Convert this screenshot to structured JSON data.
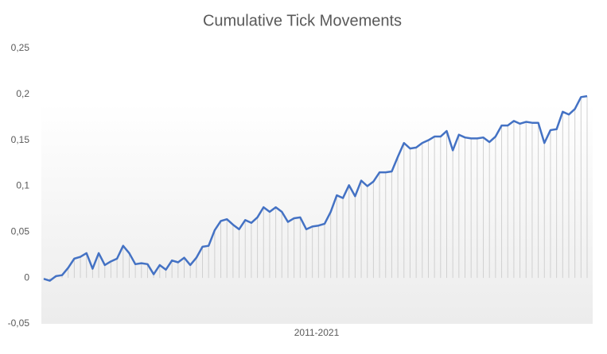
{
  "chart_data": {
    "type": "line",
    "title": "Cumulative Tick Movements",
    "x_label": "2011-2021",
    "color": "#4472c4",
    "drop_lines": true,
    "ylim": [
      -0.05,
      0.25
    ],
    "yticks": [
      {
        "value": -0.05,
        "label": "-0,05"
      },
      0,
      {
        "value": 0.05,
        "label": "0,05"
      },
      {
        "value": 0.1,
        "label": "0,1"
      },
      {
        "value": 0.15,
        "label": "0,15"
      },
      {
        "value": 0.2,
        "label": "0,2"
      },
      {
        "value": 0.25,
        "label": "0,25"
      }
    ],
    "values": [
      -0.001,
      -0.003,
      0.002,
      0.003,
      0.011,
      0.021,
      0.023,
      0.027,
      0.01,
      0.027,
      0.014,
      0.018,
      0.021,
      0.035,
      0.027,
      0.015,
      0.016,
      0.015,
      0.004,
      0.014,
      0.009,
      0.019,
      0.017,
      0.022,
      0.014,
      0.022,
      0.034,
      0.035,
      0.052,
      0.062,
      0.064,
      0.058,
      0.053,
      0.063,
      0.06,
      0.066,
      0.077,
      0.072,
      0.077,
      0.072,
      0.061,
      0.065,
      0.066,
      0.053,
      0.056,
      0.057,
      0.059,
      0.072,
      0.09,
      0.087,
      0.101,
      0.089,
      0.106,
      0.1,
      0.105,
      0.115,
      0.115,
      0.116,
      0.132,
      0.147,
      0.141,
      0.142,
      0.147,
      0.15,
      0.154,
      0.154,
      0.16,
      0.139,
      0.156,
      0.153,
      0.152,
      0.152,
      0.153,
      0.148,
      0.154,
      0.166,
      0.166,
      0.171,
      0.168,
      0.17,
      0.169,
      0.169,
      0.147,
      0.161,
      0.162,
      0.181,
      0.178,
      0.184,
      0.197,
      0.198
    ]
  }
}
